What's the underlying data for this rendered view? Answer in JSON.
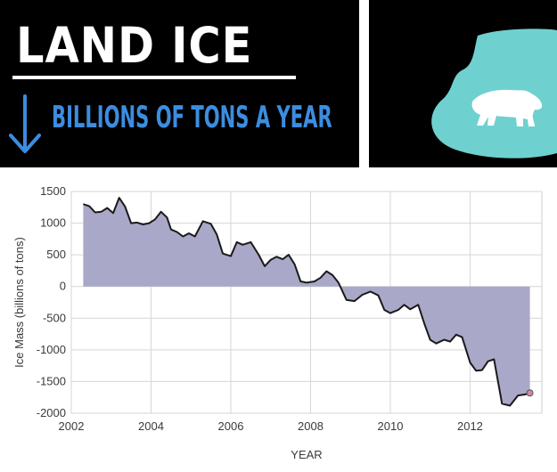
{
  "banner": {
    "title": "LAND ICE",
    "subtitle": "BILLIONS OF TONS A YEAR",
    "arrow_icon": "down-arrow-icon",
    "decoration_icon": "polar-bear-on-ice-icon",
    "colors": {
      "background": "#000000",
      "title": "#ffffff",
      "subtitle": "#3c8de0",
      "ice": "#6fd1cf",
      "bear": "#ffffff"
    }
  },
  "chart_data": {
    "type": "area",
    "title": "",
    "xlabel": "YEAR",
    "ylabel": "Ice Mass (billions of tons)",
    "xlim": [
      2002,
      2013.8
    ],
    "ylim": [
      -2000,
      1500
    ],
    "xticks": [
      2002,
      2004,
      2006,
      2008,
      2010,
      2012
    ],
    "yticks": [
      1500,
      1000,
      500,
      0,
      -500,
      -1000,
      -1500,
      -2000
    ],
    "grid": true,
    "colors": {
      "fill": "#a9a8c8",
      "line": "#1a1a1a",
      "endpoint": "#c98aa8"
    },
    "x": [
      2002.3,
      2002.45,
      2002.6,
      2002.75,
      2002.9,
      2003.05,
      2003.2,
      2003.35,
      2003.5,
      2003.65,
      2003.8,
      2003.95,
      2004.1,
      2004.25,
      2004.4,
      2004.5,
      2004.65,
      2004.8,
      2004.95,
      2005.1,
      2005.3,
      2005.5,
      2005.65,
      2005.8,
      2006.0,
      2006.15,
      2006.3,
      2006.5,
      2006.7,
      2006.85,
      2007.0,
      2007.15,
      2007.3,
      2007.45,
      2007.6,
      2007.75,
      2007.9,
      2008.1,
      2008.25,
      2008.4,
      2008.55,
      2008.7,
      2008.9,
      2009.1,
      2009.3,
      2009.5,
      2009.7,
      2009.85,
      2010.0,
      2010.2,
      2010.35,
      2010.5,
      2010.7,
      2010.85,
      2011.0,
      2011.15,
      2011.35,
      2011.5,
      2011.65,
      2011.8,
      2012.0,
      2012.15,
      2012.3,
      2012.45,
      2012.6,
      2012.8,
      2013.0,
      2013.2,
      2013.4,
      2013.5
    ],
    "values": [
      1300,
      1270,
      1170,
      1180,
      1240,
      1160,
      1400,
      1260,
      1000,
      1010,
      980,
      1000,
      1060,
      1180,
      1090,
      900,
      860,
      790,
      840,
      790,
      1030,
      990,
      820,
      520,
      480,
      700,
      660,
      700,
      500,
      320,
      420,
      470,
      430,
      500,
      350,
      80,
      60,
      80,
      140,
      240,
      180,
      60,
      -210,
      -230,
      -130,
      -80,
      -140,
      -370,
      -420,
      -370,
      -290,
      -360,
      -290,
      -580,
      -840,
      -900,
      -840,
      -870,
      -760,
      -800,
      -1200,
      -1330,
      -1320,
      -1180,
      -1150,
      -1850,
      -1880,
      -1720,
      -1700,
      -1680
    ]
  }
}
